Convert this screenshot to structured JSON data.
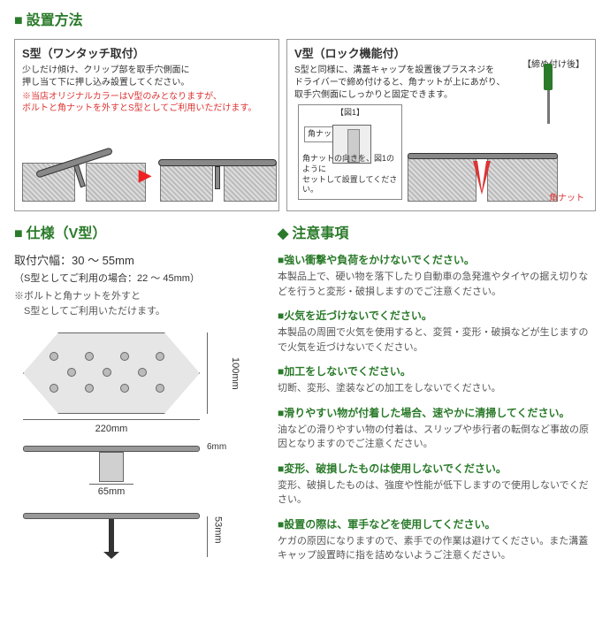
{
  "titles": {
    "install": "設置方法",
    "spec": "仕様（V型）",
    "caution": "注意事項"
  },
  "s_panel": {
    "title": "S型（ワンタッチ取付）",
    "desc": "少しだけ傾け、クリップ部を取手穴側面に\n押し当て下に押し込み設置してください。",
    "note": "※当店オリジナルカラーはV型のみとなりますが、\nボルトと角ナットを外すとS型としてご利用いただけます。"
  },
  "v_panel": {
    "title": "V型（ロック機能付）",
    "desc": "S型と同様に、溝蓋キャップを設置後プラスネジを\nドライバーで締め付けると、角ナットが上にあがり、\n取手穴側面にしっかりと固定できます。",
    "fig_title": "【図1】",
    "kaku_label": "角ナット",
    "fig_caption": "角ナットの向きを、図1のように\nセットして設置してください。",
    "after_label": "【締め付け後】",
    "kaku_bottom": "角ナット"
  },
  "spec": {
    "line1": "取付穴幅：30 ～ 55mm",
    "line2": "（S型としてご利用の場合：22 ～ 45mm）",
    "note": "※ボルトと角ナットを外すと\n　S型としてご利用いただけます。",
    "dim_w": "220mm",
    "dim_h": "100mm",
    "dim_t": "6mm",
    "dim_stem": "65mm",
    "dim_side": "53mm"
  },
  "cautions": [
    {
      "t": "■強い衝撃や負荷をかけないでください。",
      "b": "本製品上で、硬い物を落下したり自動車の急発進やタイヤの据え切りなどを行うと変形・破損しますのでご注意ください。"
    },
    {
      "t": "■火気を近づけないでください。",
      "b": "本製品の周囲で火気を使用すると、変質・変形・破損などが生じますので火気を近づけないでください。"
    },
    {
      "t": "■加工をしないでください。",
      "b": "切断、変形、塗装などの加工をしないでください。"
    },
    {
      "t": "■滑りやすい物が付着した場合、速やかに清掃してください。",
      "b": "油などの滑りやすい物の付着は、スリップや歩行者の転倒など事故の原因となりますのでご注意ください。"
    },
    {
      "t": "■変形、破損したものは使用しないでください。",
      "b": "変形、破損したものは、強度や性能が低下しますので使用しないでください。"
    },
    {
      "t": "■設置の際は、軍手などを使用してください。",
      "b": "ケガの原因になりますので、素手での作業は避けてください。また溝蓋キャップ設置時に指を詰めないようご注意ください。"
    }
  ]
}
